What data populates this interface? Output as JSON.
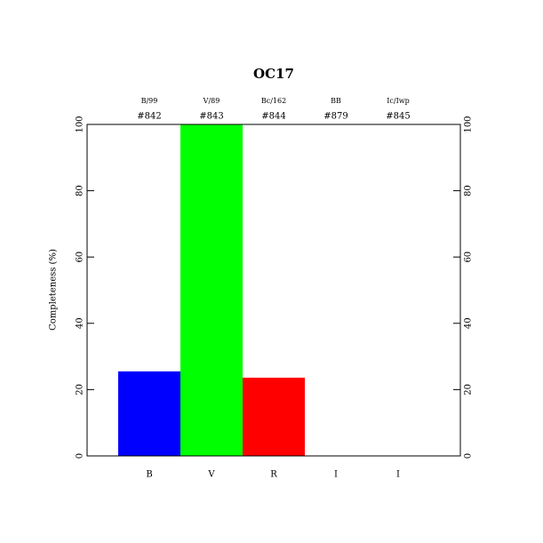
{
  "chart_data": {
    "type": "bar",
    "title": "OC17",
    "y_label": "Completeness (%)",
    "categories": [
      "B",
      "V",
      "R",
      "I",
      "I"
    ],
    "filters": [
      "B/99",
      "V/89",
      "Bc/162",
      "BB",
      "Ic/Iwp"
    ],
    "ids": [
      "#842",
      "#843",
      "#844",
      "#879",
      "#845"
    ],
    "values": [
      25.5,
      100,
      23.6,
      0,
      0
    ],
    "colors": [
      "#0000ff",
      "#00ff00",
      "#ff0000",
      "#000000",
      "#000000"
    ],
    "ylim": [
      0,
      100
    ],
    "yticks": [
      0,
      20,
      40,
      60,
      80,
      100
    ]
  }
}
